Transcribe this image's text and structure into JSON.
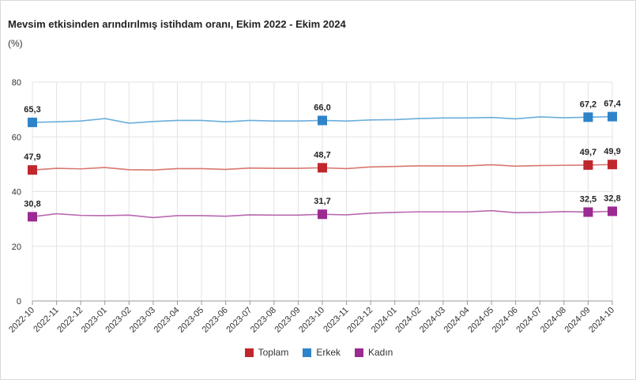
{
  "chart_data": {
    "type": "line",
    "title": "Mevsim etkisinden arındırılmış istihdam oranı, Ekim 2022 - Ekim 2024",
    "unit": "(%)",
    "xlabel": "",
    "ylabel": "",
    "ylim": [
      0,
      80
    ],
    "yticks": [
      "0",
      "20",
      "40",
      "60",
      "80"
    ],
    "ytick_values": [
      0,
      20,
      40,
      60,
      80
    ],
    "categories": [
      "2022-10",
      "2022-11",
      "2022-12",
      "2023-01",
      "2023-02",
      "2023-03",
      "2023-04",
      "2023-05",
      "2023-06",
      "2023-07",
      "2023-08",
      "2023-09",
      "2023-10",
      "2023-11",
      "2023-12",
      "2024-01",
      "2024-02",
      "2024-03",
      "2024-04",
      "2024-05",
      "2024-06",
      "2024-07",
      "2024-08",
      "2024-09",
      "2024-10"
    ],
    "marker_indices": [
      0,
      12,
      23,
      24
    ],
    "legend_position": "bottom",
    "grid": true,
    "series": [
      {
        "name": "Toplam",
        "color": "#c0272d",
        "line_color": "#d9776f",
        "values": [
          47.9,
          48.5,
          48.3,
          48.8,
          48.0,
          47.9,
          48.4,
          48.4,
          48.1,
          48.6,
          48.5,
          48.5,
          48.7,
          48.4,
          49.0,
          49.2,
          49.4,
          49.4,
          49.4,
          49.8,
          49.3,
          49.5,
          49.6,
          49.7,
          49.9
        ],
        "labels": [
          "47,9",
          "48,7",
          "49,7",
          "49,9"
        ]
      },
      {
        "name": "Erkek",
        "color": "#2f83c9",
        "line_color": "#6aaedc",
        "values": [
          65.3,
          65.5,
          65.8,
          66.7,
          65.0,
          65.6,
          66.0,
          66.0,
          65.5,
          66.0,
          65.8,
          65.8,
          66.0,
          65.8,
          66.2,
          66.3,
          66.7,
          66.9,
          66.9,
          67.1,
          66.6,
          67.3,
          67.0,
          67.2,
          67.4
        ],
        "labels": [
          "65,3",
          "66,0",
          "67,2",
          "67,4"
        ]
      },
      {
        "name": "Kadın",
        "color": "#9b2a92",
        "line_color": "#b868b0",
        "values": [
          30.8,
          31.9,
          31.3,
          31.2,
          31.4,
          30.5,
          31.2,
          31.2,
          31.0,
          31.5,
          31.4,
          31.4,
          31.7,
          31.5,
          32.1,
          32.4,
          32.6,
          32.6,
          32.6,
          33.0,
          32.3,
          32.4,
          32.7,
          32.5,
          32.8
        ],
        "labels": [
          "30,8",
          "31,7",
          "32,5",
          "32,8"
        ]
      }
    ]
  }
}
